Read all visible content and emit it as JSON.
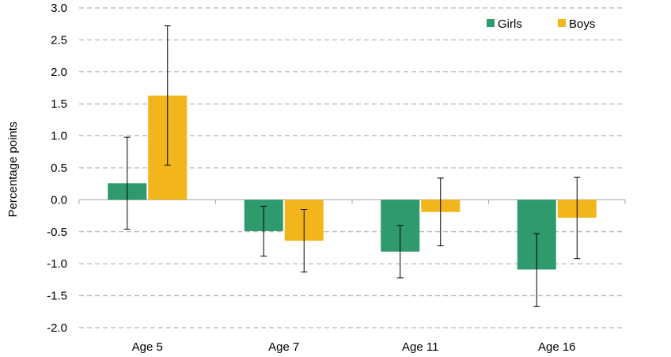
{
  "chart_data": {
    "type": "bar",
    "title": "",
    "xlabel": "",
    "ylabel": "Percentage points",
    "categories": [
      "Age 5",
      "Age 7",
      "Age 11",
      "Age 16"
    ],
    "ylim": [
      -2.0,
      3.0
    ],
    "yticks": [
      "3.0",
      "2.5",
      "2.0",
      "1.5",
      "1.0",
      "0.5",
      "0.0",
      "-0.5",
      "-1.0",
      "-1.5",
      "-2.0"
    ],
    "ytick_values": [
      3.0,
      2.5,
      2.0,
      1.5,
      1.0,
      0.5,
      0.0,
      -0.5,
      -1.0,
      -1.5,
      -2.0
    ],
    "grid": true,
    "legend_position": "top-right",
    "series": [
      {
        "name": "Girls",
        "color": "#2e9a6d",
        "values": [
          0.26,
          -0.49,
          -0.81,
          -1.09
        ],
        "error_low": [
          -0.46,
          -0.88,
          -1.22,
          -1.67
        ],
        "error_high": [
          0.98,
          -0.1,
          -0.4,
          -0.53
        ]
      },
      {
        "name": "Boys",
        "color": "#f2b51b",
        "values": [
          1.63,
          -0.64,
          -0.19,
          -0.28
        ],
        "error_low": [
          0.54,
          -1.13,
          -0.72,
          -0.92
        ],
        "error_high": [
          2.72,
          -0.15,
          0.34,
          0.35
        ]
      }
    ]
  }
}
